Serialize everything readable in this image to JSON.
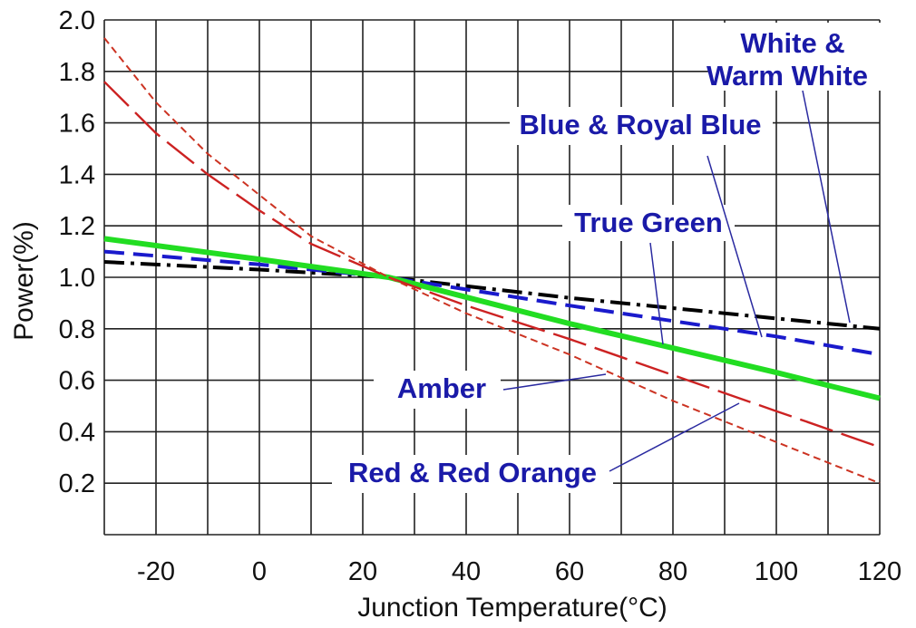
{
  "chart_data": {
    "type": "line",
    "title": "",
    "xlabel": "Junction Temperature(°C)",
    "ylabel": "Power(%)",
    "xlim": [
      -30,
      120
    ],
    "ylim": [
      0,
      2.0
    ],
    "x_ticks": [
      "-20",
      "0",
      "20",
      "40",
      "60",
      "80",
      "100",
      "120"
    ],
    "y_ticks": [
      "0.2",
      "0.4",
      "0.6",
      "0.8",
      "1.0",
      "1.2",
      "1.4",
      "1.6",
      "1.8",
      "2.0"
    ],
    "grid": true,
    "annotation_labels": [
      "White & Warm White",
      "Blue & Royal Blue",
      "True Green",
      "Amber",
      "Red & Red Orange"
    ],
    "series": [
      {
        "name": "White & Warm White",
        "color": "#000000",
        "dash": "dash-dot",
        "points": [
          [
            -30,
            1.06
          ],
          [
            0,
            1.03
          ],
          [
            25,
            1.0
          ],
          [
            60,
            0.92
          ],
          [
            100,
            0.84
          ],
          [
            120,
            0.8
          ]
        ]
      },
      {
        "name": "Blue & Royal Blue",
        "color": "#1a1acc",
        "dash": "dash",
        "points": [
          [
            -30,
            1.1
          ],
          [
            0,
            1.05
          ],
          [
            25,
            1.0
          ],
          [
            60,
            0.89
          ],
          [
            100,
            0.77
          ],
          [
            120,
            0.7
          ]
        ]
      },
      {
        "name": "True Green",
        "color": "#22dd22",
        "dash": "solid",
        "points": [
          [
            -30,
            1.15
          ],
          [
            0,
            1.07
          ],
          [
            25,
            1.0
          ],
          [
            60,
            0.82
          ],
          [
            100,
            0.63
          ],
          [
            120,
            0.53
          ]
        ]
      },
      {
        "name": "Amber",
        "color": "#cc2222",
        "dash": "long-dash",
        "points": [
          [
            -30,
            1.76
          ],
          [
            -20,
            1.56
          ],
          [
            -10,
            1.4
          ],
          [
            0,
            1.26
          ],
          [
            10,
            1.13
          ],
          [
            25,
            1.0
          ],
          [
            40,
            0.89
          ],
          [
            60,
            0.76
          ],
          [
            80,
            0.62
          ],
          [
            100,
            0.48
          ],
          [
            120,
            0.34
          ]
        ]
      },
      {
        "name": "Red & Red Orange",
        "color": "#cc3322",
        "dash": "short-dash",
        "points": [
          [
            -30,
            1.93
          ],
          [
            -20,
            1.68
          ],
          [
            -10,
            1.48
          ],
          [
            0,
            1.32
          ],
          [
            10,
            1.16
          ],
          [
            25,
            1.0
          ],
          [
            40,
            0.86
          ],
          [
            60,
            0.7
          ],
          [
            80,
            0.52
          ],
          [
            100,
            0.36
          ],
          [
            120,
            0.2
          ]
        ]
      }
    ]
  }
}
